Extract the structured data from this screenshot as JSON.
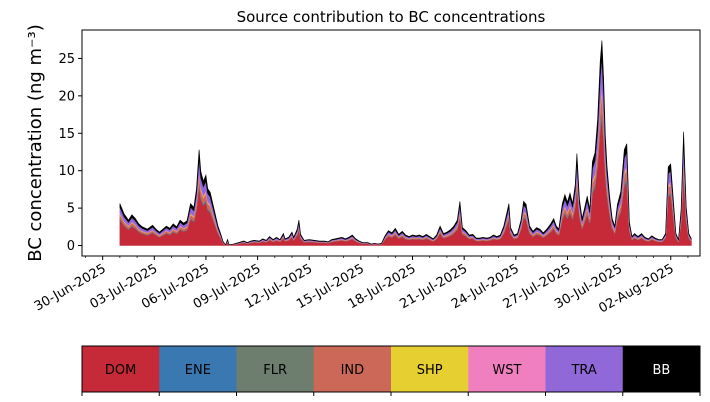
{
  "chart_data": {
    "type": "area",
    "stacked": true,
    "title": "Source contribution to BC concentrations",
    "xlabel": "",
    "ylabel": "BC concentration (ng m⁻³)",
    "ylim": [
      -1.4,
      28.8
    ],
    "yticks": [
      0,
      5,
      10,
      15,
      20,
      25
    ],
    "xlim": [
      -1.2,
      34.7
    ],
    "xticks": [
      {
        "day": 0,
        "label": "30-Jun-2025"
      },
      {
        "day": 3,
        "label": "03-Jul-2025"
      },
      {
        "day": 6,
        "label": "06-Jul-2025"
      },
      {
        "day": 9,
        "label": "09-Jul-2025"
      },
      {
        "day": 12,
        "label": "12-Jul-2025"
      },
      {
        "day": 15,
        "label": "15-Jul-2025"
      },
      {
        "day": 18,
        "label": "18-Jul-2025"
      },
      {
        "day": 21,
        "label": "21-Jul-2025"
      },
      {
        "day": 24,
        "label": "24-Jul-2025"
      },
      {
        "day": 27,
        "label": "27-Jul-2025"
      },
      {
        "day": 30,
        "label": "30-Jul-2025"
      },
      {
        "day": 33,
        "label": "02-Aug-2025"
      }
    ],
    "x_note": "x values are days since 30-Jun-2025",
    "total": [
      [
        1.0,
        5.6
      ],
      [
        1.25,
        4.2
      ],
      [
        1.5,
        3.4
      ],
      [
        1.7,
        4.1
      ],
      [
        1.9,
        3.6
      ],
      [
        2.1,
        2.9
      ],
      [
        2.3,
        2.5
      ],
      [
        2.6,
        2.2
      ],
      [
        2.9,
        2.7
      ],
      [
        3.1,
        2.2
      ],
      [
        3.3,
        1.8
      ],
      [
        3.5,
        2.2
      ],
      [
        3.7,
        2.6
      ],
      [
        3.9,
        2.3
      ],
      [
        4.1,
        2.9
      ],
      [
        4.3,
        2.5
      ],
      [
        4.5,
        3.4
      ],
      [
        4.7,
        3.0
      ],
      [
        4.9,
        3.3
      ],
      [
        5.1,
        5.6
      ],
      [
        5.3,
        5.1
      ],
      [
        5.45,
        7.6
      ],
      [
        5.6,
        12.8
      ],
      [
        5.7,
        9.9
      ],
      [
        5.85,
        8.6
      ],
      [
        6.0,
        9.4
      ],
      [
        6.1,
        7.6
      ],
      [
        6.25,
        7.1
      ],
      [
        6.4,
        5.6
      ],
      [
        6.55,
        4.1
      ],
      [
        6.7,
        2.6
      ],
      [
        6.85,
        1.6
      ],
      [
        7.0,
        0.5
      ],
      [
        7.15,
        0.1
      ],
      [
        7.25,
        0.8
      ],
      [
        7.35,
        0.1
      ],
      [
        7.6,
        0.2
      ],
      [
        7.9,
        0.4
      ],
      [
        8.2,
        0.6
      ],
      [
        8.4,
        0.4
      ],
      [
        8.6,
        0.6
      ],
      [
        8.8,
        0.7
      ],
      [
        9.1,
        0.6
      ],
      [
        9.3,
        0.9
      ],
      [
        9.5,
        0.7
      ],
      [
        9.7,
        1.2
      ],
      [
        9.9,
        0.8
      ],
      [
        10.1,
        1.1
      ],
      [
        10.3,
        0.8
      ],
      [
        10.5,
        1.6
      ],
      [
        10.6,
        0.9
      ],
      [
        10.8,
        1.1
      ],
      [
        11.0,
        1.8
      ],
      [
        11.1,
        1.1
      ],
      [
        11.3,
        2.2
      ],
      [
        11.4,
        3.4
      ],
      [
        11.5,
        1.5
      ],
      [
        11.7,
        0.7
      ],
      [
        12.0,
        0.8
      ],
      [
        12.3,
        0.7
      ],
      [
        12.6,
        0.6
      ],
      [
        12.9,
        0.6
      ],
      [
        13.1,
        0.5
      ],
      [
        13.3,
        0.8
      ],
      [
        13.5,
        0.9
      ],
      [
        13.7,
        1.0
      ],
      [
        13.9,
        1.1
      ],
      [
        14.1,
        0.9
      ],
      [
        14.3,
        1.1
      ],
      [
        14.5,
        1.4
      ],
      [
        14.7,
        0.9
      ],
      [
        14.9,
        0.6
      ],
      [
        15.1,
        0.4
      ],
      [
        15.4,
        0.4
      ],
      [
        15.6,
        0.2
      ],
      [
        15.8,
        0.3
      ],
      [
        16.0,
        0.2
      ],
      [
        16.2,
        0.3
      ],
      [
        16.4,
        1.3
      ],
      [
        16.6,
        2.0
      ],
      [
        16.8,
        1.7
      ],
      [
        17.0,
        2.3
      ],
      [
        17.2,
        1.5
      ],
      [
        17.4,
        1.9
      ],
      [
        17.6,
        1.4
      ],
      [
        17.8,
        1.2
      ],
      [
        18.0,
        1.4
      ],
      [
        18.2,
        1.3
      ],
      [
        18.4,
        1.4
      ],
      [
        18.6,
        1.2
      ],
      [
        18.8,
        1.5
      ],
      [
        19.0,
        1.2
      ],
      [
        19.2,
        0.9
      ],
      [
        19.4,
        1.4
      ],
      [
        19.6,
        2.6
      ],
      [
        19.8,
        1.6
      ],
      [
        20.0,
        1.8
      ],
      [
        20.2,
        2.1
      ],
      [
        20.4,
        2.6
      ],
      [
        20.6,
        3.4
      ],
      [
        20.75,
        5.9
      ],
      [
        20.9,
        2.4
      ],
      [
        21.1,
        2.0
      ],
      [
        21.3,
        1.4
      ],
      [
        21.5,
        1.5
      ],
      [
        21.7,
        1.0
      ],
      [
        21.9,
        1.0
      ],
      [
        22.1,
        1.1
      ],
      [
        22.3,
        1.0
      ],
      [
        22.5,
        1.1
      ],
      [
        22.7,
        1.4
      ],
      [
        22.9,
        1.2
      ],
      [
        23.1,
        1.4
      ],
      [
        23.3,
        2.6
      ],
      [
        23.5,
        4.6
      ],
      [
        23.6,
        5.6
      ],
      [
        23.7,
        2.4
      ],
      [
        23.9,
        1.4
      ],
      [
        24.1,
        1.6
      ],
      [
        24.3,
        3.4
      ],
      [
        24.45,
        5.9
      ],
      [
        24.6,
        5.5
      ],
      [
        24.8,
        2.6
      ],
      [
        25.0,
        1.9
      ],
      [
        25.2,
        2.4
      ],
      [
        25.4,
        2.2
      ],
      [
        25.6,
        1.7
      ],
      [
        25.8,
        2.2
      ],
      [
        26.0,
        2.8
      ],
      [
        26.2,
        3.6
      ],
      [
        26.35,
        2.6
      ],
      [
        26.5,
        2.2
      ],
      [
        26.7,
        5.6
      ],
      [
        26.85,
        6.8
      ],
      [
        27.0,
        5.8
      ],
      [
        27.15,
        7.0
      ],
      [
        27.3,
        5.6
      ],
      [
        27.45,
        8.1
      ],
      [
        27.55,
        12.3
      ],
      [
        27.7,
        6.1
      ],
      [
        27.85,
        3.6
      ],
      [
        28.0,
        5.1
      ],
      [
        28.15,
        6.6
      ],
      [
        28.3,
        4.8
      ],
      [
        28.45,
        11.2
      ],
      [
        28.6,
        12.4
      ],
      [
        28.75,
        16.8
      ],
      [
        28.9,
        24.6
      ],
      [
        29.0,
        27.4
      ],
      [
        29.1,
        22.4
      ],
      [
        29.2,
        14.8
      ],
      [
        29.3,
        10.6
      ],
      [
        29.45,
        6.6
      ],
      [
        29.6,
        3.6
      ],
      [
        29.75,
        2.6
      ],
      [
        29.9,
        5.5
      ],
      [
        30.1,
        7.2
      ],
      [
        30.3,
        12.8
      ],
      [
        30.45,
        13.6
      ],
      [
        30.6,
        3.1
      ],
      [
        30.75,
        1.2
      ],
      [
        30.9,
        1.6
      ],
      [
        31.1,
        1.2
      ],
      [
        31.3,
        1.6
      ],
      [
        31.5,
        1.1
      ],
      [
        31.7,
        0.9
      ],
      [
        31.9,
        1.3
      ],
      [
        32.1,
        1.0
      ],
      [
        32.3,
        0.8
      ],
      [
        32.5,
        0.8
      ],
      [
        32.7,
        1.6
      ],
      [
        32.85,
        10.5
      ],
      [
        33.0,
        10.9
      ],
      [
        33.15,
        6.2
      ],
      [
        33.3,
        1.6
      ],
      [
        33.45,
        0.8
      ],
      [
        33.6,
        4.8
      ],
      [
        33.75,
        15.2
      ],
      [
        33.9,
        5.2
      ],
      [
        34.05,
        1.6
      ],
      [
        34.2,
        0.9
      ]
    ],
    "shares": {
      "DOM": 0.62,
      "ENE": 0.015,
      "FLR": 0.015,
      "IND": 0.09,
      "SHP": 0.015,
      "WST": 0.03,
      "TRA": 0.13,
      "BB": 0.085
    },
    "series": [
      {
        "name": "DOM",
        "color": "#c62a38"
      },
      {
        "name": "ENE",
        "color": "#3a78b2"
      },
      {
        "name": "FLR",
        "color": "#6e7e6e"
      },
      {
        "name": "IND",
        "color": "#cc6857"
      },
      {
        "name": "SHP",
        "color": "#e6cf30"
      },
      {
        "name": "WST",
        "color": "#f07fc0"
      },
      {
        "name": "TRA",
        "color": "#9068d8"
      },
      {
        "name": "BB",
        "color": "#000000"
      }
    ],
    "legend": "bottom-colorbar",
    "grid": false
  }
}
